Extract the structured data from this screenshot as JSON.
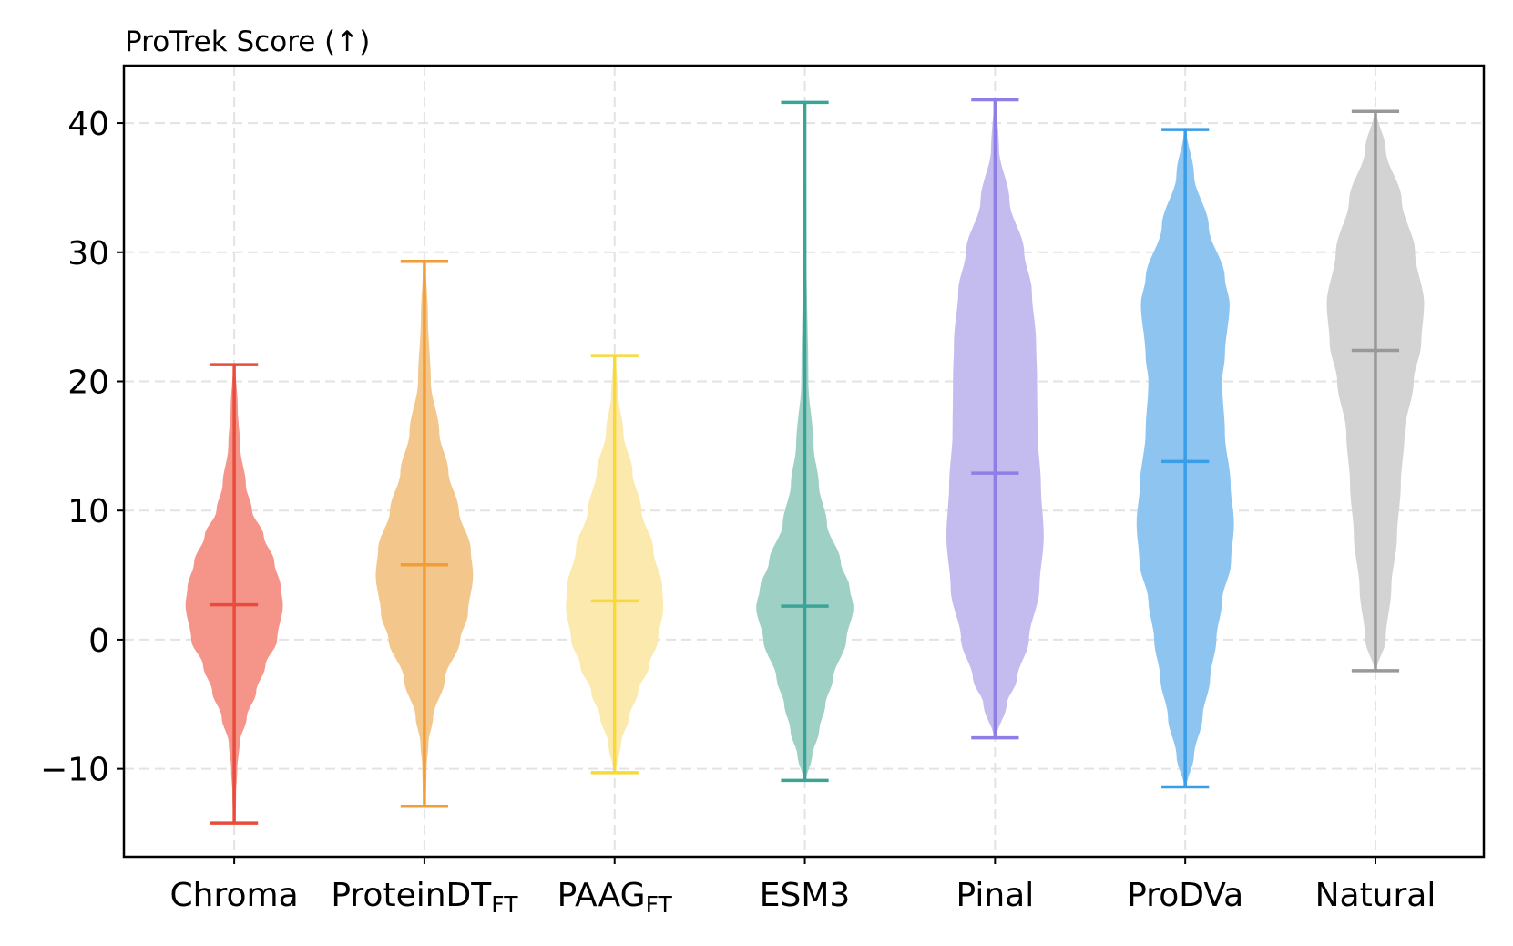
{
  "chart_data": {
    "type": "violin",
    "title": "ProTrek Score (↑)",
    "xlabel": "",
    "ylabel": "",
    "ylim": [
      -16.8,
      44.45
    ],
    "xlim": [
      0.42,
      7.57
    ],
    "grid": true,
    "yticks": [
      -10,
      0,
      10,
      20,
      30,
      40
    ],
    "ytick_labels": [
      "−10",
      "0",
      "10",
      "20",
      "30",
      "40"
    ],
    "categories": [
      {
        "name": "Chroma",
        "sub": ""
      },
      {
        "name": "ProteinDT",
        "sub": "FT"
      },
      {
        "name": "PAAG",
        "sub": "FT"
      },
      {
        "name": "ESM3",
        "sub": ""
      },
      {
        "name": "Pinal",
        "sub": ""
      },
      {
        "name": "ProDVa",
        "sub": ""
      },
      {
        "name": "Natural",
        "sub": ""
      }
    ],
    "series": [
      {
        "name": "Chroma",
        "min": -14.2,
        "median": 2.7,
        "max": 21.3,
        "line_color": "#e74c3c",
        "fill_color": "#f5958a",
        "density": [
          [
            21.3,
            0
          ],
          [
            18,
            0.05
          ],
          [
            15,
            0.1
          ],
          [
            12,
            0.22
          ],
          [
            10,
            0.35
          ],
          [
            8,
            0.6
          ],
          [
            6,
            0.82
          ],
          [
            4,
            0.96
          ],
          [
            2.7,
            1
          ],
          [
            0,
            0.88
          ],
          [
            -2,
            0.63
          ],
          [
            -4,
            0.44
          ],
          [
            -6,
            0.24
          ],
          [
            -8,
            0.09
          ],
          [
            -10,
            0.04
          ],
          [
            -12,
            0.015
          ],
          [
            -14.2,
            0
          ]
        ]
      },
      {
        "name": "ProteinDT_FT",
        "min": -12.9,
        "median": 5.8,
        "max": 29.3,
        "line_color": "#f29e38",
        "fill_color": "#f3c68c",
        "density": [
          [
            29.3,
            0
          ],
          [
            25,
            0.05
          ],
          [
            20,
            0.11
          ],
          [
            16,
            0.29
          ],
          [
            13,
            0.48
          ],
          [
            10,
            0.7
          ],
          [
            7,
            0.95
          ],
          [
            5,
            1
          ],
          [
            2,
            0.89
          ],
          [
            0,
            0.73
          ],
          [
            -3,
            0.41
          ],
          [
            -6,
            0.16
          ],
          [
            -8,
            0.06
          ],
          [
            -10,
            0.02
          ],
          [
            -12.9,
            0
          ]
        ]
      },
      {
        "name": "PAAG_FT",
        "min": -10.3,
        "median": 3.0,
        "max": 22.0,
        "line_color": "#f9d93a",
        "fill_color": "#fbe9ae",
        "density": [
          [
            22,
            0
          ],
          [
            19,
            0.05
          ],
          [
            16,
            0.16
          ],
          [
            13,
            0.35
          ],
          [
            10,
            0.54
          ],
          [
            7,
            0.79
          ],
          [
            4,
            0.98
          ],
          [
            2.5,
            1
          ],
          [
            0,
            0.89
          ],
          [
            -2,
            0.7
          ],
          [
            -4,
            0.47
          ],
          [
            -6,
            0.28
          ],
          [
            -8,
            0.11
          ],
          [
            -10.3,
            0
          ]
        ]
      },
      {
        "name": "ESM3",
        "min": -10.9,
        "median": 2.6,
        "max": 41.6,
        "line_color": "#3aa597",
        "fill_color": "#9fd0c5",
        "density": [
          [
            41.6,
            0
          ],
          [
            30,
            0.01
          ],
          [
            20,
            0.05
          ],
          [
            15,
            0.16
          ],
          [
            12,
            0.27
          ],
          [
            9,
            0.44
          ],
          [
            6,
            0.73
          ],
          [
            4,
            0.92
          ],
          [
            2.5,
            1
          ],
          [
            0,
            0.85
          ],
          [
            -3,
            0.57
          ],
          [
            -5,
            0.41
          ],
          [
            -7,
            0.28
          ],
          [
            -9,
            0.13
          ],
          [
            -10.9,
            0
          ]
        ]
      },
      {
        "name": "Pinal",
        "min": -7.6,
        "median": 12.9,
        "max": 41.8,
        "line_color": "#8e7fe6",
        "fill_color": "#c4bcee",
        "density": [
          [
            41.8,
            0
          ],
          [
            38,
            0.06
          ],
          [
            34,
            0.28
          ],
          [
            30,
            0.59
          ],
          [
            27,
            0.75
          ],
          [
            23,
            0.84
          ],
          [
            20,
            0.86
          ],
          [
            16,
            0.87
          ],
          [
            12,
            0.94
          ],
          [
            8,
            1
          ],
          [
            4,
            0.91
          ],
          [
            0,
            0.69
          ],
          [
            -3,
            0.44
          ],
          [
            -5,
            0.22
          ],
          [
            -7.6,
            0
          ]
        ]
      },
      {
        "name": "ProDVa",
        "min": -11.4,
        "median": 13.8,
        "max": 39.5,
        "line_color": "#3a9de8",
        "fill_color": "#8ec4f0",
        "density": [
          [
            39.5,
            0
          ],
          [
            36,
            0.16
          ],
          [
            32,
            0.47
          ],
          [
            28,
            0.81
          ],
          [
            26,
            0.91
          ],
          [
            22,
            0.81
          ],
          [
            20,
            0.75
          ],
          [
            16,
            0.81
          ],
          [
            12,
            0.93
          ],
          [
            9,
            1
          ],
          [
            6,
            0.94
          ],
          [
            3,
            0.75
          ],
          [
            0,
            0.63
          ],
          [
            -3,
            0.5
          ],
          [
            -6,
            0.34
          ],
          [
            -9,
            0.16
          ],
          [
            -11.4,
            0
          ]
        ]
      },
      {
        "name": "Natural",
        "min": -2.4,
        "median": 22.4,
        "max": 40.9,
        "line_color": "#999999",
        "fill_color": "#d3d3d3",
        "density": [
          [
            40.9,
            0
          ],
          [
            38,
            0.19
          ],
          [
            34,
            0.53
          ],
          [
            30,
            0.81
          ],
          [
            26,
            1
          ],
          [
            23,
            0.94
          ],
          [
            20,
            0.78
          ],
          [
            16,
            0.59
          ],
          [
            12,
            0.51
          ],
          [
            8,
            0.43
          ],
          [
            4,
            0.31
          ],
          [
            0,
            0.19
          ],
          [
            -2.4,
            0
          ]
        ]
      }
    ]
  }
}
